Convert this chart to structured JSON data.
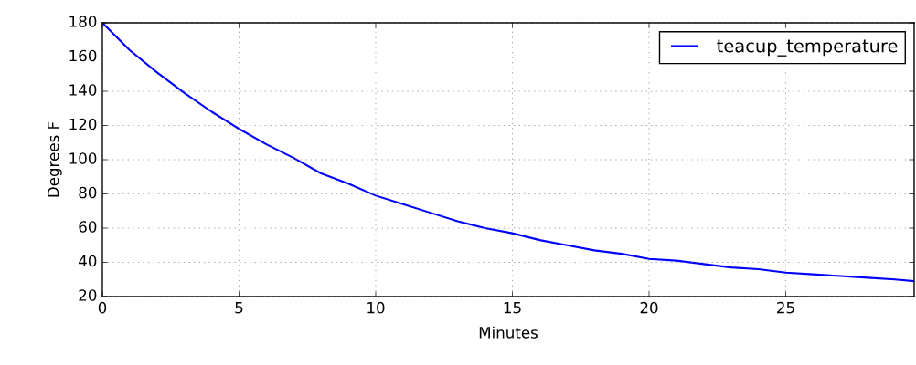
{
  "chart_data": {
    "type": "line",
    "xlabel": "Minutes",
    "ylabel": "Degrees F",
    "x": [
      0,
      1,
      2,
      3,
      4,
      5,
      6,
      7,
      8,
      9,
      10,
      11,
      12,
      13,
      14,
      15,
      16,
      17,
      18,
      19,
      20,
      21,
      22,
      23,
      24,
      25,
      26,
      27,
      28,
      29,
      29.7
    ],
    "series": [
      {
        "name": "teacup_temperature",
        "color": "#0000ff",
        "values": [
          180,
          164,
          151,
          139,
          128,
          118,
          109,
          101,
          92,
          86,
          79,
          74,
          69,
          64,
          60,
          57,
          53,
          50,
          47,
          45,
          42,
          41,
          39,
          37,
          36,
          34,
          33,
          32,
          31,
          30,
          29
        ]
      }
    ],
    "xlim": [
      0,
      29.7
    ],
    "xticks": [
      0,
      5,
      10,
      15,
      20,
      25
    ],
    "ylim": [
      20,
      180
    ],
    "yticks": [
      20,
      40,
      60,
      80,
      100,
      120,
      140,
      160,
      180
    ],
    "grid": true,
    "legend": "top right"
  }
}
